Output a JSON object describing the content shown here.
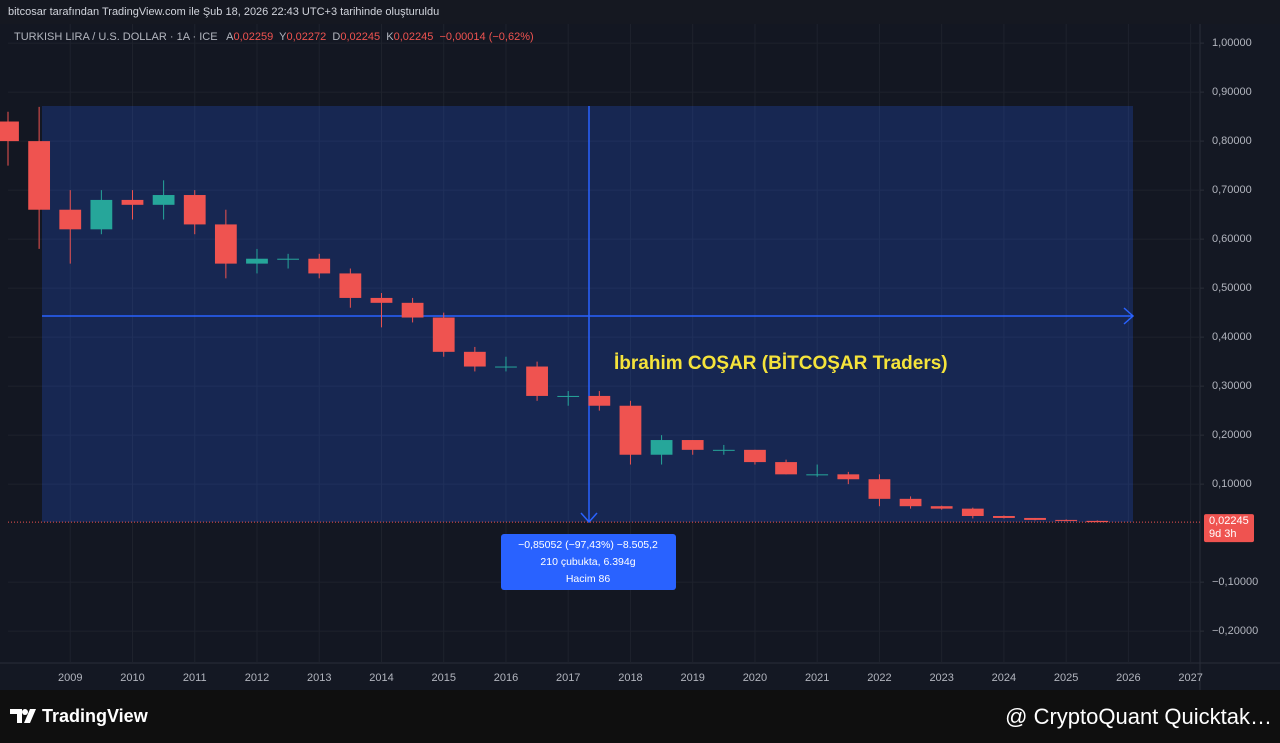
{
  "header": {
    "title": "bitcosar tarafından TradingView.com ile Şub 18, 2026 22:43 UTC+3 tarihinde oluşturuldu"
  },
  "legend": {
    "symbol": "TURKISH LIRA / U.S. DOLLAR · 1A · ICE",
    "open_label": "A",
    "open": "0,02259",
    "high_label": "Y",
    "high": "0,02272",
    "low_label": "D",
    "low": "0,02245",
    "close_label": "K",
    "close": "0,02245",
    "change": "−0,00014 (−0,62%)"
  },
  "chart_data": {
    "type": "candlestick",
    "annotation": "İbrahim COŞAR (BİTCOŞAR Traders)",
    "x": [
      2008.0,
      2008.5,
      2009.0,
      2009.5,
      2010.0,
      2010.5,
      2011.0,
      2011.5,
      2012.0,
      2012.5,
      2013.0,
      2013.5,
      2014.0,
      2014.5,
      2015.0,
      2015.5,
      2016.0,
      2016.5,
      2017.0,
      2017.5,
      2018.0,
      2018.5,
      2019.0,
      2019.5,
      2020.0,
      2020.5,
      2021.0,
      2021.5,
      2022.0,
      2022.5,
      2023.0,
      2023.5,
      2024.0,
      2024.5,
      2025.0,
      2025.5
    ],
    "open": [
      0.84,
      0.8,
      0.66,
      0.62,
      0.68,
      0.67,
      0.69,
      0.63,
      0.55,
      0.56,
      0.56,
      0.53,
      0.48,
      0.47,
      0.44,
      0.37,
      0.34,
      0.34,
      0.28,
      0.28,
      0.26,
      0.16,
      0.19,
      0.17,
      0.17,
      0.145,
      0.12,
      0.12,
      0.11,
      0.07,
      0.055,
      0.05,
      0.035,
      0.031,
      0.027,
      0.025
    ],
    "high": [
      0.86,
      0.87,
      0.7,
      0.7,
      0.7,
      0.72,
      0.7,
      0.66,
      0.58,
      0.57,
      0.57,
      0.54,
      0.49,
      0.48,
      0.45,
      0.38,
      0.36,
      0.35,
      0.29,
      0.29,
      0.27,
      0.2,
      0.19,
      0.18,
      0.17,
      0.15,
      0.14,
      0.125,
      0.12,
      0.075,
      0.056,
      0.052,
      0.036,
      0.031,
      0.028,
      0.026
    ],
    "low": [
      0.75,
      0.58,
      0.55,
      0.61,
      0.64,
      0.64,
      0.61,
      0.52,
      0.53,
      0.54,
      0.52,
      0.46,
      0.42,
      0.43,
      0.36,
      0.33,
      0.33,
      0.27,
      0.26,
      0.25,
      0.14,
      0.14,
      0.16,
      0.16,
      0.14,
      0.12,
      0.115,
      0.1,
      0.055,
      0.05,
      0.048,
      0.03,
      0.03,
      0.026,
      0.024,
      0.022
    ],
    "close": [
      0.8,
      0.66,
      0.62,
      0.68,
      0.67,
      0.69,
      0.63,
      0.55,
      0.56,
      0.56,
      0.53,
      0.48,
      0.47,
      0.44,
      0.37,
      0.34,
      0.34,
      0.28,
      0.28,
      0.26,
      0.16,
      0.19,
      0.17,
      0.17,
      0.145,
      0.12,
      0.12,
      0.11,
      0.07,
      0.055,
      0.05,
      0.035,
      0.031,
      0.027,
      0.025,
      0.02245
    ],
    "up_color": "#26a69a",
    "down_color": "#ef5350",
    "xlim": [
      2008.0,
      2027.15
    ],
    "xticks": [
      2009,
      2010,
      2011,
      2012,
      2013,
      2014,
      2015,
      2016,
      2017,
      2018,
      2019,
      2020,
      2021,
      2022,
      2023,
      2024,
      2025,
      2026,
      2027
    ],
    "ylim": [
      -0.265,
      1.039
    ],
    "yticks": [
      {
        "value": 1.0,
        "label": "1,00000"
      },
      {
        "value": 0.9,
        "label": "0,90000"
      },
      {
        "value": 0.8,
        "label": "0,80000"
      },
      {
        "value": 0.7,
        "label": "0,70000"
      },
      {
        "value": 0.6,
        "label": "0,60000"
      },
      {
        "value": 0.5,
        "label": "0,50000"
      },
      {
        "value": 0.4,
        "label": "0,40000"
      },
      {
        "value": 0.3,
        "label": "0,30000"
      },
      {
        "value": 0.2,
        "label": "0,20000"
      },
      {
        "value": 0.1,
        "label": "0,10000"
      },
      {
        "value": -0.1,
        "label": "−0,10000"
      },
      {
        "value": -0.2,
        "label": "−0,20000"
      }
    ],
    "grid": true,
    "last_price_label": "0,02245",
    "countdown": "9d 3h",
    "measure": {
      "line1": "−0,85052 (−97,43%) −8.505,2",
      "line2": "210 çubukta, 6.394g",
      "line3": "Hacim 86"
    }
  },
  "footer": {
    "brand": "TradingView",
    "credit": "@ CryptoQuant Quicktak…"
  }
}
